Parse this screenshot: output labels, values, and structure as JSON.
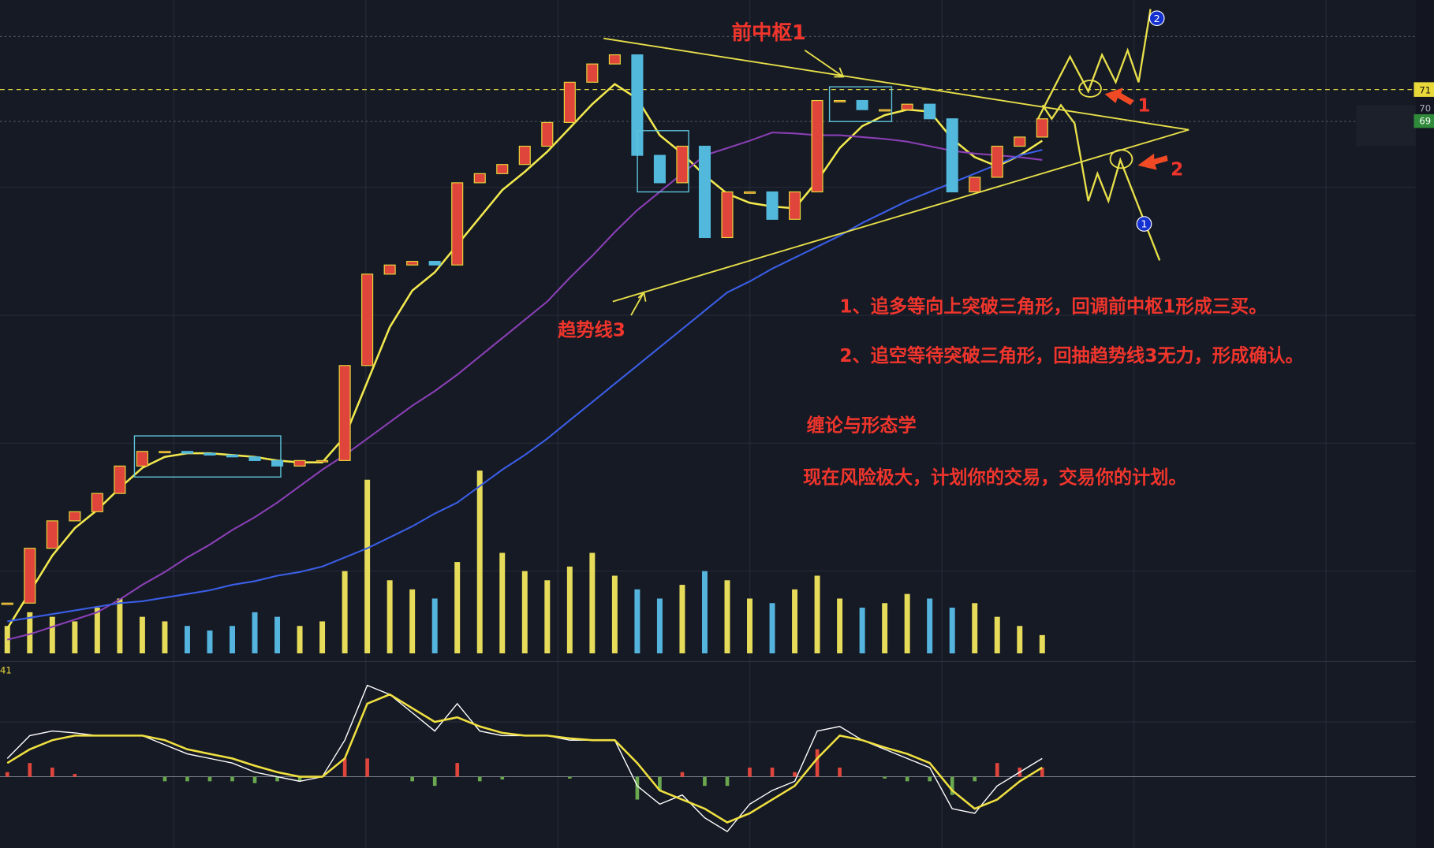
{
  "chart_data": {
    "type": "candlestick",
    "ylim": [
      40,
      74
    ],
    "up_color": "#e0453c",
    "down_color": "#52b9dc",
    "close": [
      42.9,
      45.9,
      47.4,
      47.9,
      48.9,
      50.4,
      51.2,
      51.2,
      51.1,
      51.0,
      50.9,
      50.7,
      50.4,
      50.7,
      50.7,
      55.9,
      60.9,
      61.4,
      61.6,
      61.4,
      65.9,
      66.4,
      66.9,
      67.9,
      69.2,
      71.4,
      72.4,
      72.9,
      67.4,
      65.9,
      67.9,
      62.9,
      65.4,
      65.4,
      63.9,
      65.4,
      70.4,
      70.4,
      69.9,
      69.9,
      70.2,
      69.4,
      65.4,
      66.2,
      67.9,
      68.4,
      69.4
    ],
    "series": [
      {
        "color": "#f2e94e",
        "values": [
          41.5,
          43.5,
          45.5,
          47.0,
          48.0,
          49.2,
          50.3,
          50.9,
          51.1,
          51.1,
          51.0,
          50.9,
          50.7,
          50.6,
          50.6,
          52.0,
          55.0,
          58.0,
          60.0,
          61.0,
          62.5,
          64.0,
          65.5,
          66.5,
          67.6,
          68.9,
          70.2,
          71.3,
          70.5,
          68.5,
          67.5,
          66.3,
          65.3,
          64.8,
          64.6,
          64.5,
          66.0,
          67.8,
          69.0,
          69.6,
          69.9,
          69.8,
          68.3,
          67.3,
          66.8,
          67.4,
          68.2
        ]
      },
      {
        "color": "#8a3fb5",
        "values": [
          40.9,
          41.2,
          41.6,
          42.0,
          42.4,
          43.1,
          43.9,
          44.6,
          45.4,
          46.1,
          46.9,
          47.6,
          48.4,
          49.3,
          50.2,
          51.0,
          51.9,
          52.8,
          53.7,
          54.5,
          55.4,
          56.4,
          57.4,
          58.4,
          59.4,
          60.7,
          61.9,
          63.2,
          64.4,
          65.4,
          66.4,
          67.4,
          67.8,
          68.2,
          68.65,
          68.6,
          68.5,
          68.5,
          68.4,
          68.3,
          68.15,
          67.9,
          67.65,
          67.5,
          67.4,
          67.3,
          67.15
        ]
      },
      {
        "color": "#3a5ee6",
        "values": [
          41.9,
          42.1,
          42.3,
          42.5,
          42.7,
          42.9,
          43.0,
          43.2,
          43.4,
          43.6,
          43.9,
          44.1,
          44.4,
          44.6,
          44.9,
          45.4,
          45.9,
          46.5,
          47.1,
          47.8,
          48.4,
          49.3,
          50.2,
          51.0,
          51.9,
          52.9,
          53.9,
          54.9,
          55.9,
          56.9,
          57.9,
          58.9,
          59.9,
          60.5,
          61.2,
          61.8,
          62.4,
          63.0,
          63.7,
          64.3,
          64.9,
          65.4,
          65.9,
          66.4,
          66.9,
          67.4,
          67.7
        ]
      }
    ],
    "volume": {
      "ylim": [
        0,
        220
      ],
      "up_color": "#e6dc5a",
      "down_color": "#55b4de",
      "values": [
        30,
        45,
        40,
        35,
        50,
        60,
        40,
        35,
        30,
        25,
        30,
        45,
        40,
        30,
        35,
        90,
        190,
        80,
        70,
        60,
        100,
        200,
        110,
        90,
        80,
        95,
        110,
        85,
        70,
        60,
        75,
        90,
        80,
        60,
        55,
        70,
        85,
        60,
        50,
        55,
        65,
        60,
        50,
        55,
        40,
        30,
        20
      ]
    },
    "macd": {
      "label": "41",
      "ylim": [
        -78,
        120
      ],
      "dif": {
        "color": "#ffffff",
        "values": [
          20,
          45,
          50,
          48,
          45,
          45,
          45,
          35,
          25,
          20,
          15,
          5,
          0,
          -5,
          0,
          40,
          100,
          90,
          70,
          50,
          80,
          50,
          45,
          45,
          45,
          40,
          40,
          40,
          -10,
          -30,
          -20,
          -45,
          -60,
          -30,
          -15,
          -5,
          50,
          55,
          40,
          30,
          20,
          10,
          -35,
          -40,
          -10,
          5,
          20
        ]
      },
      "dea": {
        "color": "#f0e040",
        "values": [
          15,
          30,
          40,
          45,
          45,
          45,
          45,
          40,
          30,
          25,
          20,
          12,
          5,
          0,
          0,
          20,
          80,
          90,
          75,
          60,
          65,
          55,
          48,
          45,
          45,
          42,
          40,
          40,
          15,
          -15,
          -25,
          -35,
          -50,
          -40,
          -25,
          -10,
          20,
          45,
          40,
          32,
          25,
          15,
          -15,
          -35,
          -25,
          -5,
          10
        ]
      },
      "hist": {
        "up_color": "#e0453c",
        "down_color": "#6aa84f",
        "values": [
          5,
          15,
          10,
          3,
          0,
          0,
          0,
          -5,
          -5,
          -5,
          -5,
          -7,
          -5,
          -5,
          0,
          20,
          20,
          0,
          -5,
          -10,
          15,
          -5,
          -3,
          0,
          0,
          -2,
          0,
          0,
          -25,
          -15,
          5,
          -10,
          -10,
          10,
          10,
          5,
          30,
          10,
          0,
          -2,
          -5,
          -5,
          -20,
          -5,
          15,
          10,
          10
        ]
      }
    },
    "price_tags": [
      "71",
      "70",
      "69"
    ],
    "annotations": {
      "pivot": "前中枢1",
      "trendline": "趋势线3",
      "plan1": "1、追多等向上突破三角形，回调前中枢1形成三买。",
      "plan2": "2、追空等待突破三角形，回抽趋势线3无力，形成确认。",
      "heading": "缠论与形态学",
      "warning": "现在风险极大，计划你的交易，交易你的计划。",
      "arrow1": "1",
      "arrow2": "2",
      "circle2": "2",
      "circle1": "1"
    }
  }
}
